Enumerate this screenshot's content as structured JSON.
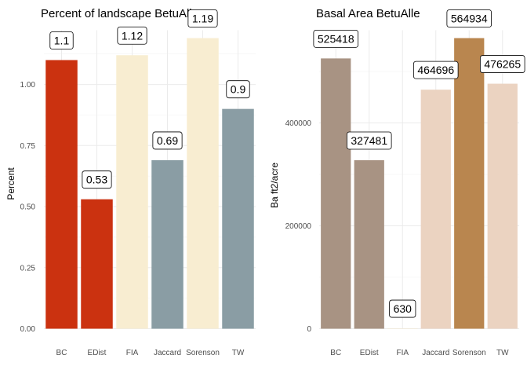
{
  "chart_data": [
    {
      "type": "bar",
      "title": "Percent of landscape  BetuAlle",
      "xlabel": "",
      "ylabel": "Percent",
      "categories": [
        "BC",
        "EDist",
        "FIA",
        "Jaccard",
        "Sorenson",
        "TW"
      ],
      "values": [
        1.1,
        0.53,
        1.12,
        0.69,
        1.19,
        0.9
      ],
      "labels": [
        "1.1",
        "0.53",
        "1.12",
        "0.69",
        "1.19",
        "0.9"
      ],
      "colors": [
        "#cb3210",
        "#cb3210",
        "#f8edd1",
        "#8a9da4",
        "#f8edd1",
        "#8a9da4"
      ],
      "ylim": [
        0,
        1.19
      ],
      "yticks": [
        0,
        0.25,
        0.5,
        0.75,
        1.0
      ],
      "ytick_labels": [
        "0.00",
        "0.25",
        "0.50",
        "0.75",
        "1.00"
      ],
      "grid": true,
      "legend": "none"
    },
    {
      "type": "bar",
      "title": "Basal Area  BetuAlle",
      "xlabel": "",
      "ylabel": "Ba ft2/acre",
      "categories": [
        "BC",
        "EDist",
        "FIA",
        "Jaccard",
        "Sorenson",
        "TW"
      ],
      "values": [
        525418,
        327481,
        630,
        464696,
        564934,
        476265
      ],
      "labels": [
        "525418",
        "327481",
        "630",
        "464696",
        "564934",
        "476265"
      ],
      "colors": [
        "#a89383",
        "#a89383",
        "#f3e9d6",
        "#ebd3c1",
        "#b9864f",
        "#ebd3c1"
      ],
      "ylim": [
        0,
        564934
      ],
      "yticks": [
        0,
        200000,
        400000
      ],
      "ytick_labels": [
        "0",
        "200000",
        "400000"
      ],
      "grid": true,
      "legend": "none"
    }
  ]
}
